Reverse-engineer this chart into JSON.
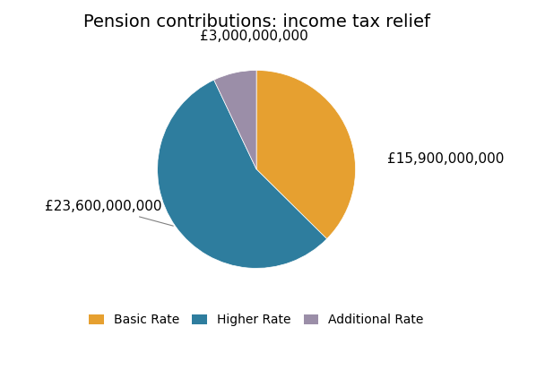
{
  "title": "Pension contributions: income tax relief",
  "slices": [
    15900000000,
    23600000000,
    3000000000
  ],
  "labels": [
    "Basic Rate",
    "Higher Rate",
    "Additional Rate"
  ],
  "colors": [
    "#e6a030",
    "#2e7d9e",
    "#9b8ea8"
  ],
  "autopct_labels": [
    "£15,900,000,000",
    "£23,600,000,000",
    "£3,000,000,000"
  ],
  "startangle": 90,
  "legend_labels": [
    "Basic Rate",
    "Higher Rate",
    "Additional Rate"
  ],
  "background_color": "#ffffff",
  "title_fontsize": 14,
  "label_fontsize": 11
}
